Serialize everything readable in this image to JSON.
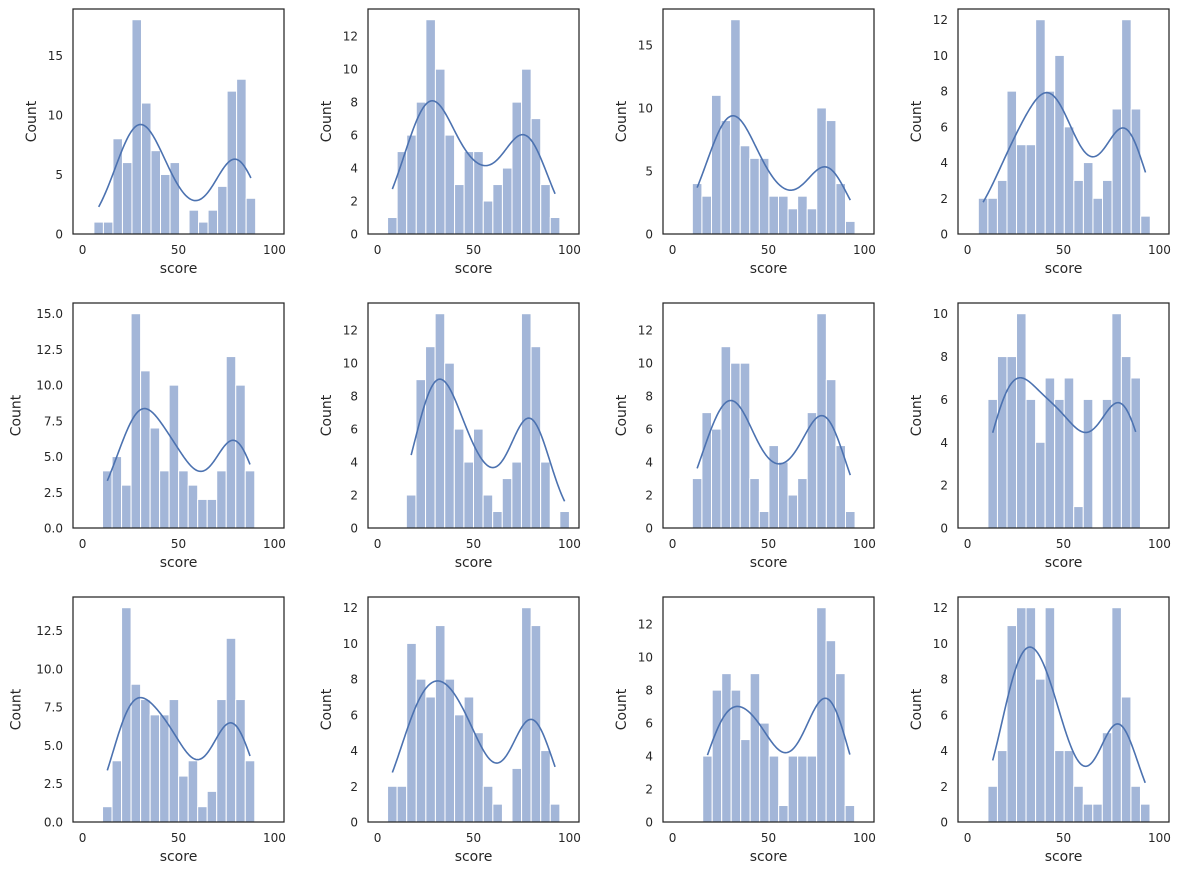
{
  "chart_data": {
    "type": "histogram-grid",
    "layout": {
      "rows": 3,
      "cols": 4
    },
    "colors": {
      "bar": "#a3b6d8",
      "bar_edge": "#ffffff",
      "kde": "#4c72b0",
      "spine": "#262626"
    },
    "grid": false,
    "panels": [
      {
        "xlabel": "score",
        "ylabel": "Count",
        "xlim": [
          -5,
          105
        ],
        "xticks": [
          "0",
          "50",
          "100"
        ],
        "yticks": [
          "0",
          "5",
          "10",
          "15"
        ],
        "ytick_values": [
          0,
          5,
          10,
          15
        ],
        "ylim": [
          0,
          18.9
        ],
        "bin_start": 5.9,
        "bin_width": 4.96,
        "counts": [
          1,
          1,
          8,
          6,
          18,
          11,
          7,
          5,
          6,
          0,
          2,
          1,
          2,
          4,
          12,
          13,
          3
        ]
      },
      {
        "xlabel": "score",
        "ylabel": "Count",
        "xlim": [
          -5,
          105
        ],
        "xticks": [
          "0",
          "50",
          "100"
        ],
        "yticks": [
          "0",
          "2",
          "4",
          "6",
          "8",
          "10",
          "12"
        ],
        "ytick_values": [
          0,
          2,
          4,
          6,
          8,
          10,
          12
        ],
        "ylim": [
          0,
          13.65
        ],
        "bin_start": 5.2,
        "bin_width": 4.99,
        "counts": [
          1,
          5,
          6,
          8,
          13,
          10,
          6,
          3,
          5,
          5,
          2,
          3,
          4,
          8,
          10,
          7,
          3,
          1
        ]
      },
      {
        "xlabel": "score",
        "ylabel": "Count",
        "xlim": [
          -5,
          105
        ],
        "xticks": [
          "0",
          "50",
          "100"
        ],
        "yticks": [
          "0",
          "5",
          "10",
          "15"
        ],
        "ytick_values": [
          0,
          5,
          10,
          15
        ],
        "ylim": [
          0,
          17.85
        ],
        "bin_start": 10.3,
        "bin_width": 4.99,
        "counts": [
          4,
          3,
          11,
          9,
          17,
          7,
          6,
          6,
          3,
          3,
          2,
          3,
          2,
          10,
          9,
          4,
          1
        ]
      },
      {
        "xlabel": "score",
        "ylabel": "Count",
        "xlim": [
          -5,
          105
        ],
        "xticks": [
          "0",
          "50",
          "100"
        ],
        "yticks": [
          "0",
          "2",
          "4",
          "6",
          "8",
          "10",
          "12"
        ],
        "ytick_values": [
          0,
          2,
          4,
          6,
          8,
          10,
          12
        ],
        "ylim": [
          0,
          12.6
        ],
        "bin_start": 5.6,
        "bin_width": 4.98,
        "counts": [
          2,
          2,
          3,
          8,
          5,
          5,
          12,
          8,
          10,
          6,
          3,
          4,
          2,
          3,
          7,
          12,
          7,
          1
        ]
      },
      {
        "xlabel": "score",
        "ylabel": "Count",
        "xlim": [
          -5,
          105
        ],
        "xticks": [
          "0",
          "50",
          "100"
        ],
        "yticks": [
          "0.0",
          "2.5",
          "5.0",
          "7.5",
          "10.0",
          "12.5",
          "15.0"
        ],
        "ytick_values": [
          0,
          2.5,
          5,
          7.5,
          10,
          12.5,
          15
        ],
        "ylim": [
          0,
          15.75
        ],
        "bin_start": 10.4,
        "bin_width": 4.96,
        "counts": [
          4,
          5,
          3,
          15,
          11,
          7,
          4,
          10,
          4,
          3,
          2,
          2,
          4,
          12,
          10,
          4
        ]
      },
      {
        "xlabel": "score",
        "ylabel": "Count",
        "xlim": [
          -5,
          105
        ],
        "xticks": [
          "0",
          "50",
          "100"
        ],
        "yticks": [
          "0",
          "2",
          "4",
          "6",
          "8",
          "10",
          "12"
        ],
        "ytick_values": [
          0,
          2,
          4,
          6,
          8,
          10,
          12
        ],
        "ylim": [
          0,
          13.65
        ],
        "bin_start": 15.0,
        "bin_width": 5.0,
        "counts": [
          2,
          9,
          11,
          13,
          10,
          6,
          4,
          6,
          2,
          1,
          3,
          4,
          13,
          11,
          4,
          0,
          1
        ]
      },
      {
        "xlabel": "score",
        "ylabel": "Count",
        "xlim": [
          -5,
          105
        ],
        "xticks": [
          "0",
          "50",
          "100"
        ],
        "yticks": [
          "0",
          "2",
          "4",
          "6",
          "8",
          "10",
          "12"
        ],
        "ytick_values": [
          0,
          2,
          4,
          6,
          8,
          10,
          12
        ],
        "ylim": [
          0,
          13.65
        ],
        "bin_start": 10.3,
        "bin_width": 4.99,
        "counts": [
          3,
          7,
          6,
          11,
          10,
          10,
          3,
          1,
          5,
          4,
          2,
          3,
          7,
          13,
          9,
          5,
          1
        ]
      },
      {
        "xlabel": "score",
        "ylabel": "Count",
        "xlim": [
          -5,
          105
        ],
        "xticks": [
          "0",
          "50",
          "100"
        ],
        "yticks": [
          "0",
          "2",
          "4",
          "6",
          "8",
          "10"
        ],
        "ytick_values": [
          0,
          2,
          4,
          6,
          8,
          10
        ],
        "ylim": [
          0,
          10.5
        ],
        "bin_start": 10.6,
        "bin_width": 4.97,
        "counts": [
          6,
          8,
          8,
          10,
          6,
          4,
          7,
          6,
          7,
          1,
          6,
          0,
          6,
          10,
          8,
          7
        ]
      },
      {
        "xlabel": "score",
        "ylabel": "Count",
        "xlim": [
          -5,
          105
        ],
        "xticks": [
          "0",
          "50",
          "100"
        ],
        "yticks": [
          "0.0",
          "2.5",
          "5.0",
          "7.5",
          "10.0",
          "12.5"
        ],
        "ytick_values": [
          0,
          2.5,
          5,
          7.5,
          10,
          12.5
        ],
        "ylim": [
          0,
          14.7
        ],
        "bin_start": 10.4,
        "bin_width": 4.96,
        "counts": [
          1,
          4,
          14,
          9,
          8,
          7,
          7,
          8,
          3,
          4,
          1,
          2,
          8,
          12,
          8,
          4
        ]
      },
      {
        "xlabel": "score",
        "ylabel": "Count",
        "xlim": [
          -5,
          105
        ],
        "xticks": [
          "0",
          "50",
          "100"
        ],
        "yticks": [
          "0",
          "2",
          "4",
          "6",
          "8",
          "10",
          "12"
        ],
        "ytick_values": [
          0,
          2,
          4,
          6,
          8,
          10,
          12
        ],
        "ylim": [
          0,
          12.6
        ],
        "bin_start": 5.2,
        "bin_width": 4.99,
        "counts": [
          2,
          2,
          10,
          8,
          7,
          11,
          8,
          6,
          7,
          5,
          2,
          1,
          0,
          3,
          12,
          11,
          4,
          1
        ]
      },
      {
        "xlabel": "score",
        "ylabel": "Count",
        "xlim": [
          -5,
          105
        ],
        "xticks": [
          "0",
          "50",
          "100"
        ],
        "yticks": [
          "0",
          "2",
          "4",
          "6",
          "8",
          "10",
          "12"
        ],
        "ytick_values": [
          0,
          2,
          4,
          6,
          8,
          10,
          12
        ],
        "ylim": [
          0,
          13.65
        ],
        "bin_start": 15.7,
        "bin_width": 4.95,
        "counts": [
          4,
          8,
          9,
          8,
          5,
          9,
          6,
          4,
          1,
          4,
          4,
          4,
          13,
          11,
          9,
          1
        ]
      },
      {
        "xlabel": "score",
        "ylabel": "Count",
        "xlim": [
          -5,
          105
        ],
        "xticks": [
          "0",
          "50",
          "100"
        ],
        "yticks": [
          "0",
          "2",
          "4",
          "6",
          "8",
          "10",
          "12"
        ],
        "ytick_values": [
          0,
          2,
          4,
          6,
          8,
          10,
          12
        ],
        "ylim": [
          0,
          12.6
        ],
        "bin_start": 10.6,
        "bin_width": 4.97,
        "counts": [
          2,
          4,
          11,
          12,
          12,
          8,
          12,
          4,
          4,
          2,
          1,
          1,
          5,
          12,
          7,
          2,
          1
        ]
      }
    ]
  }
}
